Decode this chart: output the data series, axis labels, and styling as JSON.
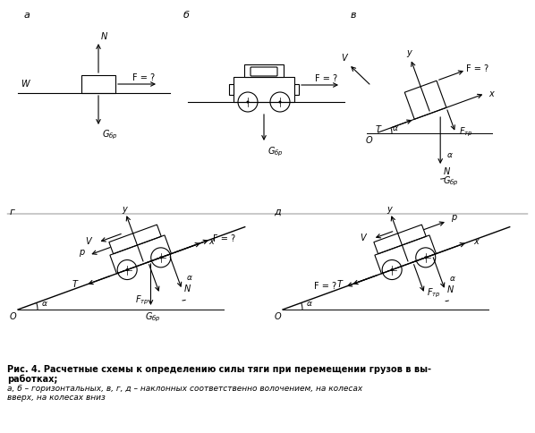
{
  "title_line1": "Рис. 4. Расчетные схемы к определению силы тяги при перемещении грузов в вы-",
  "title_line2": "работках;",
  "title_line3": "а, б – горизонтальных, в, г, д – наклонных соответственно волочением, на колесах",
  "title_line4": "вверх, на колесах вниз",
  "bg_color": "#ffffff",
  "line_color": "#000000"
}
